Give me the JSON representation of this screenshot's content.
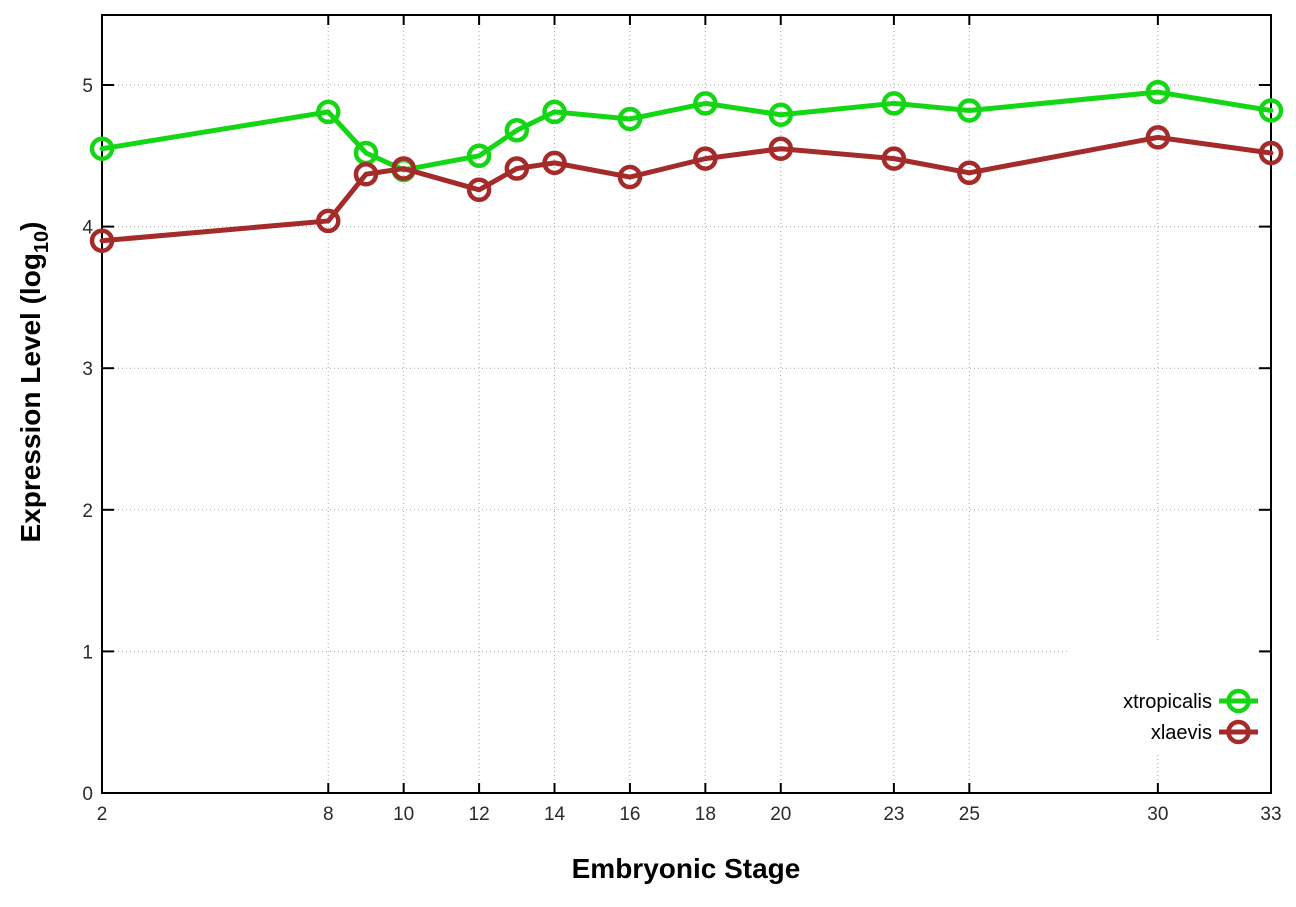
{
  "chart_data": {
    "type": "line",
    "title": "",
    "xlabel": "Embryonic Stage",
    "ylabel": "Expression Level (log10)",
    "ylabel_parts": {
      "main": "Expression Level (log",
      "sub": "10",
      "close": ")"
    },
    "x": [
      2,
      8,
      9,
      10,
      12,
      13,
      14,
      16,
      18,
      20,
      23,
      25,
      30,
      33
    ],
    "x_tick_labels": [
      "2",
      "8",
      "10",
      "12",
      "14",
      "16",
      "18",
      "20",
      "23",
      "25",
      "30",
      "33"
    ],
    "x_tick_values": [
      2,
      8,
      10,
      12,
      14,
      16,
      18,
      20,
      23,
      25,
      30,
      33
    ],
    "y_tick_labels": [
      "0",
      "1",
      "2",
      "3",
      "4",
      "5"
    ],
    "y_tick_values": [
      0,
      1,
      2,
      3,
      4,
      5
    ],
    "xlim": [
      2,
      33
    ],
    "ylim": [
      0,
      5.5
    ],
    "grid": true,
    "legend_position": "inside-right",
    "series": [
      {
        "name": "xtropicalis",
        "color": "#15d615",
        "marker": "open-circle",
        "values": [
          4.55,
          4.81,
          4.52,
          4.4,
          4.5,
          4.68,
          4.81,
          4.76,
          4.87,
          4.79,
          4.87,
          4.82,
          4.95,
          4.82
        ]
      },
      {
        "name": "xlaevis",
        "color": "#a52a2a",
        "marker": "open-circle",
        "values": [
          3.9,
          4.04,
          4.37,
          4.41,
          4.26,
          4.41,
          4.45,
          4.35,
          4.48,
          4.55,
          4.48,
          4.38,
          4.63,
          4.52
        ]
      }
    ],
    "colors": {
      "axis": "#000000",
      "grid": "#a8a8a8",
      "tick_label": "#2a2a2a",
      "background": "#ffffff"
    }
  }
}
